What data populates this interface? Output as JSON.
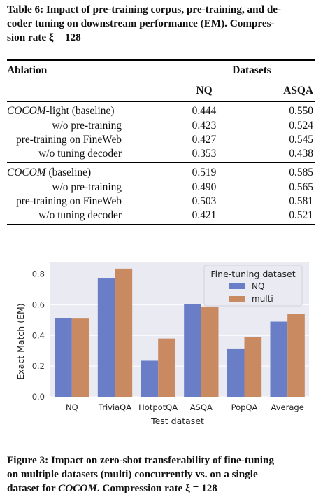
{
  "table_caption": {
    "prefix": "Table 6: Impact of pre-training corpus, pre-training, and de-",
    "line2": "coder tuning on downstream performance (EM). Compres-",
    "line3": "sion rate ξ = 128"
  },
  "table": {
    "header_left": "Ablation",
    "header_group": "Datasets",
    "columns": [
      "NQ",
      "ASQA"
    ],
    "groups": [
      {
        "rows": [
          {
            "label_italic": "COCOM",
            "label_rest": "-light (baseline)",
            "nq": "0.444",
            "asqa": "0.550"
          },
          {
            "label_italic": "",
            "label_rest": "w/o pre-training",
            "nq": "0.423",
            "asqa": "0.524"
          },
          {
            "label_italic": "",
            "label_rest": "pre-training on FineWeb",
            "nq": "0.427",
            "asqa": "0.545"
          },
          {
            "label_italic": "",
            "label_rest": "w/o tuning decoder",
            "nq": "0.353",
            "asqa": "0.438"
          }
        ]
      },
      {
        "rows": [
          {
            "label_italic": "COCOM",
            "label_rest": " (baseline)",
            "nq": "0.519",
            "asqa": "0.585"
          },
          {
            "label_italic": "",
            "label_rest": "w/o pre-training",
            "nq": "0.490",
            "asqa": "0.565"
          },
          {
            "label_italic": "",
            "label_rest": "pre-training on FineWeb",
            "nq": "0.503",
            "asqa": "0.581"
          },
          {
            "label_italic": "",
            "label_rest": "w/o tuning decoder",
            "nq": "0.421",
            "asqa": "0.521"
          }
        ]
      }
    ]
  },
  "chart_data": {
    "type": "bar",
    "categories": [
      "NQ",
      "TriviaQA",
      "HotpotQA",
      "ASQA",
      "PopQA",
      "Average"
    ],
    "series": [
      {
        "name": "NQ",
        "values": [
          0.515,
          0.775,
          0.235,
          0.605,
          0.315,
          0.49
        ]
      },
      {
        "name": "multi",
        "values": [
          0.51,
          0.835,
          0.38,
          0.585,
          0.39,
          0.54
        ]
      }
    ],
    "colors": {
      "NQ": "#6a7ec8",
      "multi": "#c98a62"
    },
    "xlabel": "Test dataset",
    "ylabel": "Exact Match (EM)",
    "yticks": [
      "0.0",
      "0.2",
      "0.4",
      "0.6",
      "0.8"
    ],
    "ylim": [
      0,
      0.88
    ],
    "grid": true,
    "background": "#eaeaf2",
    "legend_title": "Fine-tuning dataset",
    "legend_placement": "top-right"
  },
  "figure_caption": {
    "line1": "Figure 3: Impact on zero-shot transferability of fine-tuning",
    "line2": "on multiple datasets (multi) concurrently vs. on a single",
    "line3_pre": "dataset for ",
    "line3_italic": "COCOM",
    "line3_post": ". Compression rate ξ = 128"
  }
}
